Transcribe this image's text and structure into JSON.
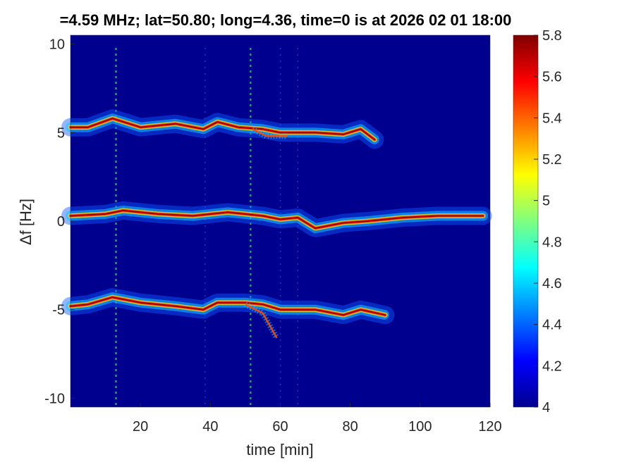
{
  "chart_data": {
    "type": "heatmap",
    "title": "=4.59 MHz;  lat=50.80; long=4.36, time=0 is at 2026 02 01 18:00",
    "xlabel": "time [min]",
    "ylabel": "Δf [Hz]",
    "xlim": [
      0,
      120
    ],
    "ylim": [
      -10.5,
      10.5
    ],
    "x_ticks": [
      "20",
      "40",
      "60",
      "80",
      "100",
      "120"
    ],
    "y_ticks": [
      "10",
      "5",
      "0",
      "-5",
      "-10"
    ],
    "colorbar": {
      "range": [
        4,
        5.8
      ],
      "ticks": [
        "4",
        "4.2",
        "4.4",
        "4.6",
        "4.8",
        "5",
        "5.2",
        "5.4",
        "5.6",
        "5.8"
      ],
      "colormap": "jet"
    },
    "background_color": "#00008f",
    "traces": [
      {
        "name": "upper",
        "t_end": 87,
        "points": [
          [
            0,
            5.3
          ],
          [
            5,
            5.3
          ],
          [
            12,
            5.8
          ],
          [
            20,
            5.3
          ],
          [
            30,
            5.5
          ],
          [
            38,
            5.2
          ],
          [
            42,
            5.6
          ],
          [
            48,
            5.3
          ],
          [
            55,
            5.2
          ],
          [
            60,
            5.0
          ],
          [
            70,
            5.0
          ],
          [
            78,
            4.9
          ],
          [
            83,
            5.2
          ],
          [
            87,
            4.6
          ]
        ]
      },
      {
        "name": "middle",
        "t_end": 120,
        "points": [
          [
            0,
            0.3
          ],
          [
            10,
            0.4
          ],
          [
            15,
            0.6
          ],
          [
            25,
            0.4
          ],
          [
            35,
            0.3
          ],
          [
            45,
            0.5
          ],
          [
            55,
            0.3
          ],
          [
            60,
            0.1
          ],
          [
            65,
            0.2
          ],
          [
            70,
            -0.4
          ],
          [
            78,
            -0.1
          ],
          [
            85,
            0.0
          ],
          [
            95,
            0.2
          ],
          [
            105,
            0.3
          ],
          [
            118,
            0.3
          ]
        ]
      },
      {
        "name": "lower",
        "t_end": 90,
        "points": [
          [
            0,
            -4.8
          ],
          [
            5,
            -4.7
          ],
          [
            12,
            -4.3
          ],
          [
            20,
            -4.6
          ],
          [
            30,
            -4.8
          ],
          [
            38,
            -5.0
          ],
          [
            42,
            -4.6
          ],
          [
            50,
            -4.6
          ],
          [
            55,
            -4.7
          ],
          [
            60,
            -5.0
          ],
          [
            70,
            -5.0
          ],
          [
            78,
            -5.3
          ],
          [
            83,
            -5.0
          ],
          [
            90,
            -5.3
          ]
        ]
      }
    ],
    "branch_segments": [
      {
        "points": [
          [
            50,
            -4.7
          ],
          [
            55,
            -5.2
          ],
          [
            59,
            -6.6
          ]
        ]
      },
      {
        "points": [
          [
            52,
            5.2
          ],
          [
            56,
            4.8
          ],
          [
            62,
            4.8
          ]
        ]
      }
    ],
    "vertical_stripes": [
      13,
      38.5,
      51.5,
      60,
      65
    ]
  }
}
